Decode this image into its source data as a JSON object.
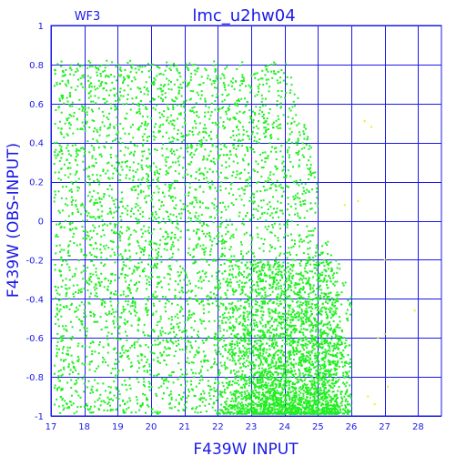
{
  "chart_data": {
    "type": "scatter",
    "panel_label": "WF3",
    "title": "lmc_u2hw04",
    "xlabel": "F439W INPUT",
    "ylabel": "F439W (OBS-INPUT)",
    "xlim": [
      17,
      28.7
    ],
    "ylim": [
      -1,
      1
    ],
    "xticks": [
      17,
      18,
      19,
      20,
      21,
      22,
      23,
      24,
      25,
      26,
      27,
      28
    ],
    "yticks": [
      -1,
      -0.8,
      -0.6,
      -0.4,
      -0.2,
      0,
      0.2,
      0.4,
      0.6,
      0.8,
      1
    ],
    "ytick_labels": [
      "-1",
      "-0.8",
      "-0.6",
      "-0.4",
      "-0.2",
      "0",
      "0.2",
      "0.4",
      "0.6",
      "0.8",
      "1"
    ],
    "grid": true,
    "colors": {
      "axes": "#1a1ae6",
      "series_main": "#22ee22",
      "series_sparse": "#eeee22"
    },
    "series": [
      {
        "distribution": "uniform dense band with fading right edge",
        "x_range": [
          17.1,
          25.9
        ],
        "y_range": [
          -0.99,
          0.82
        ],
        "approx_count": 4200,
        "color": "#22ee22"
      },
      {
        "distribution": "faint-end concentration toward negative residuals",
        "x_range": [
          21.8,
          26.0
        ],
        "y_range": [
          -0.99,
          -0.2
        ],
        "approx_count": 2600,
        "color": "#22ee22"
      },
      {
        "distribution": "sparse outliers",
        "points": [
          [
            26.4,
            0.51
          ],
          [
            26.6,
            0.48
          ],
          [
            25.8,
            0.08
          ],
          [
            26.2,
            0.1
          ],
          [
            27.0,
            -0.2
          ],
          [
            27.9,
            -0.46
          ],
          [
            26.8,
            -0.6
          ],
          [
            27.0,
            -0.58
          ],
          [
            27.1,
            -0.85
          ],
          [
            26.5,
            -0.9
          ],
          [
            26.7,
            -0.94
          ]
        ],
        "color": "#eeee22"
      }
    ]
  }
}
